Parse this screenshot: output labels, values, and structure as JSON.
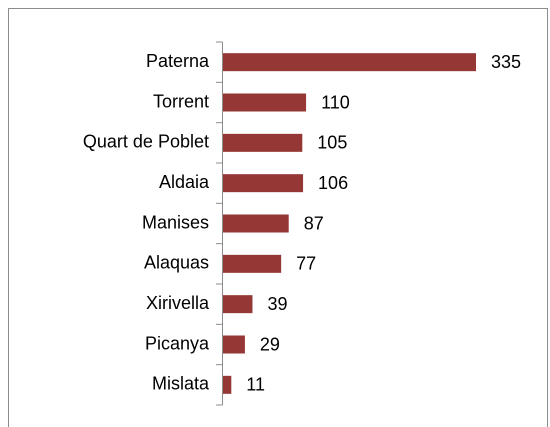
{
  "chart_data": {
    "type": "bar",
    "orientation": "horizontal",
    "categories": [
      "Paterna",
      "Torrent",
      "Quart de Poblet",
      "Aldaia",
      "Manises",
      "Alaquas",
      "Xirivella",
      "Picanya",
      "Mislata"
    ],
    "values": [
      335,
      110,
      105,
      106,
      87,
      77,
      39,
      29,
      11
    ],
    "color": "#953735"
  }
}
